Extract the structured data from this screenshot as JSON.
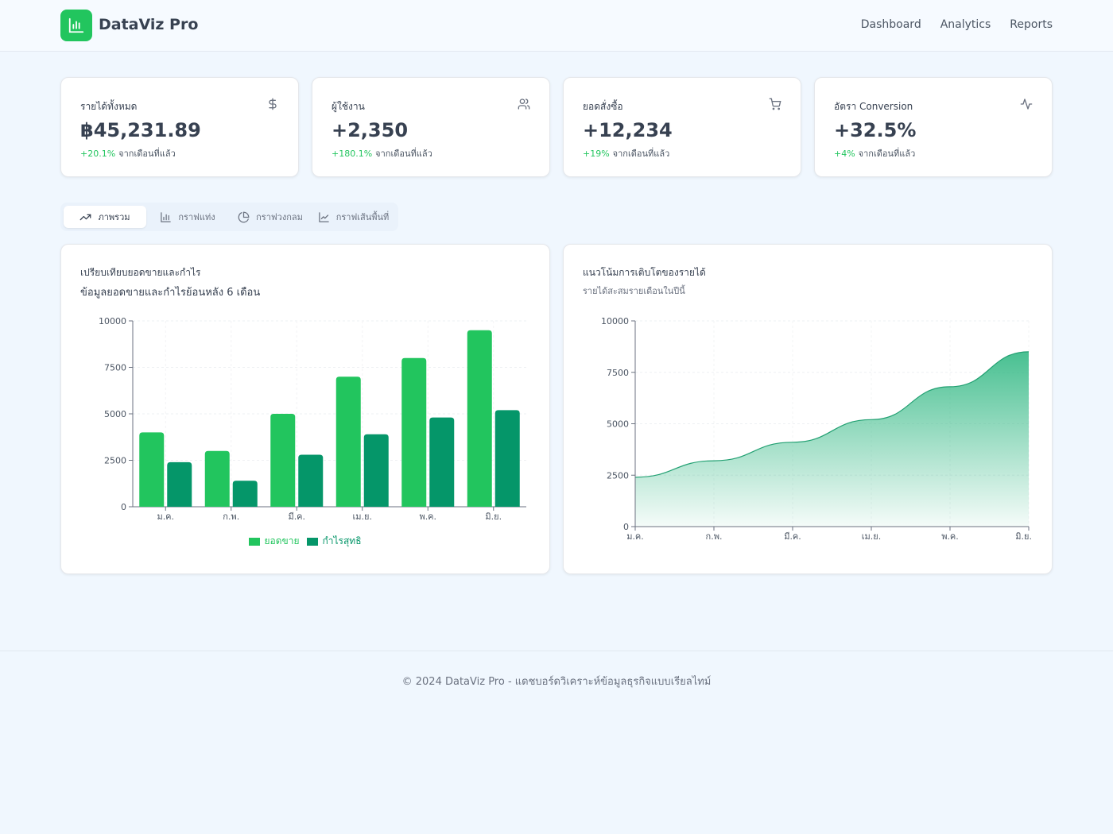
{
  "app": {
    "brand": "DataViz Pro",
    "nav": [
      "Dashboard",
      "Analytics",
      "Reports"
    ]
  },
  "stats": [
    {
      "label": "รายได้ทั้งหมด",
      "value": "฿45,231.89",
      "change": "+20.1%",
      "note": "จากเดือนที่แล้ว",
      "icon": "dollar-icon"
    },
    {
      "label": "ผู้ใช้งาน",
      "value": "+2,350",
      "change": "+180.1%",
      "note": "จากเดือนที่แล้ว",
      "icon": "users-icon"
    },
    {
      "label": "ยอดสั่งซื้อ",
      "value": "+12,234",
      "change": "+19%",
      "note": "จากเดือนที่แล้ว",
      "icon": "cart-icon"
    },
    {
      "label": "อัตรา Conversion",
      "value": "+32.5%",
      "change": "+4%",
      "note": "จากเดือนที่แล้ว",
      "icon": "activity-icon"
    }
  ],
  "tabs": [
    {
      "label": "ภาพรวม",
      "icon": "trending-up-icon",
      "active": true
    },
    {
      "label": "กราฟแท่ง",
      "icon": "bar-chart-icon",
      "active": false
    },
    {
      "label": "กราฟวงกลม",
      "icon": "pie-chart-icon",
      "active": false
    },
    {
      "label": "กราฟเส้นพื้นที่",
      "icon": "line-chart-icon",
      "active": false
    }
  ],
  "colors": {
    "accent": "#22c55e",
    "accent_dark": "#059669",
    "area": "#34b985"
  },
  "bar_card": {
    "title": "เปรียบเทียบยอดขายและกำไร",
    "subtitle": "ข้อมูลยอดขายและกำไรย้อนหลัง 6 เดือน"
  },
  "area_card": {
    "title": "แนวโน้มการเติบโตของรายได้",
    "subtitle": "รายได้สะสมรายเดือนในปีนี้"
  },
  "chart_data": [
    {
      "type": "bar",
      "categories": [
        "ม.ค.",
        "ก.พ.",
        "มี.ค.",
        "เม.ย.",
        "พ.ค.",
        "มิ.ย."
      ],
      "series": [
        {
          "name": "ยอดขาย",
          "values": [
            4000,
            3000,
            5000,
            7000,
            8000,
            9500
          ]
        },
        {
          "name": "กำไรสุทธิ",
          "values": [
            2400,
            1400,
            2800,
            3900,
            4800,
            5200
          ]
        }
      ],
      "ylim": [
        0,
        10000
      ],
      "yticks": [
        0,
        2500,
        5000,
        7500,
        10000
      ],
      "grid": true,
      "legend": "bottom"
    },
    {
      "type": "area",
      "categories": [
        "ม.ค.",
        "ก.พ.",
        "มี.ค.",
        "เม.ย.",
        "พ.ค.",
        "มิ.ย."
      ],
      "values": [
        2400,
        3200,
        4100,
        5200,
        6800,
        8500
      ],
      "ylim": [
        0,
        10000
      ],
      "yticks": [
        0,
        2500,
        5000,
        7500,
        10000
      ],
      "grid": true
    }
  ],
  "footer": {
    "text": "© 2024 DataViz Pro - แดชบอร์ดวิเคราะห์ข้อมูลธุรกิจแบบเรียลไทม์"
  }
}
